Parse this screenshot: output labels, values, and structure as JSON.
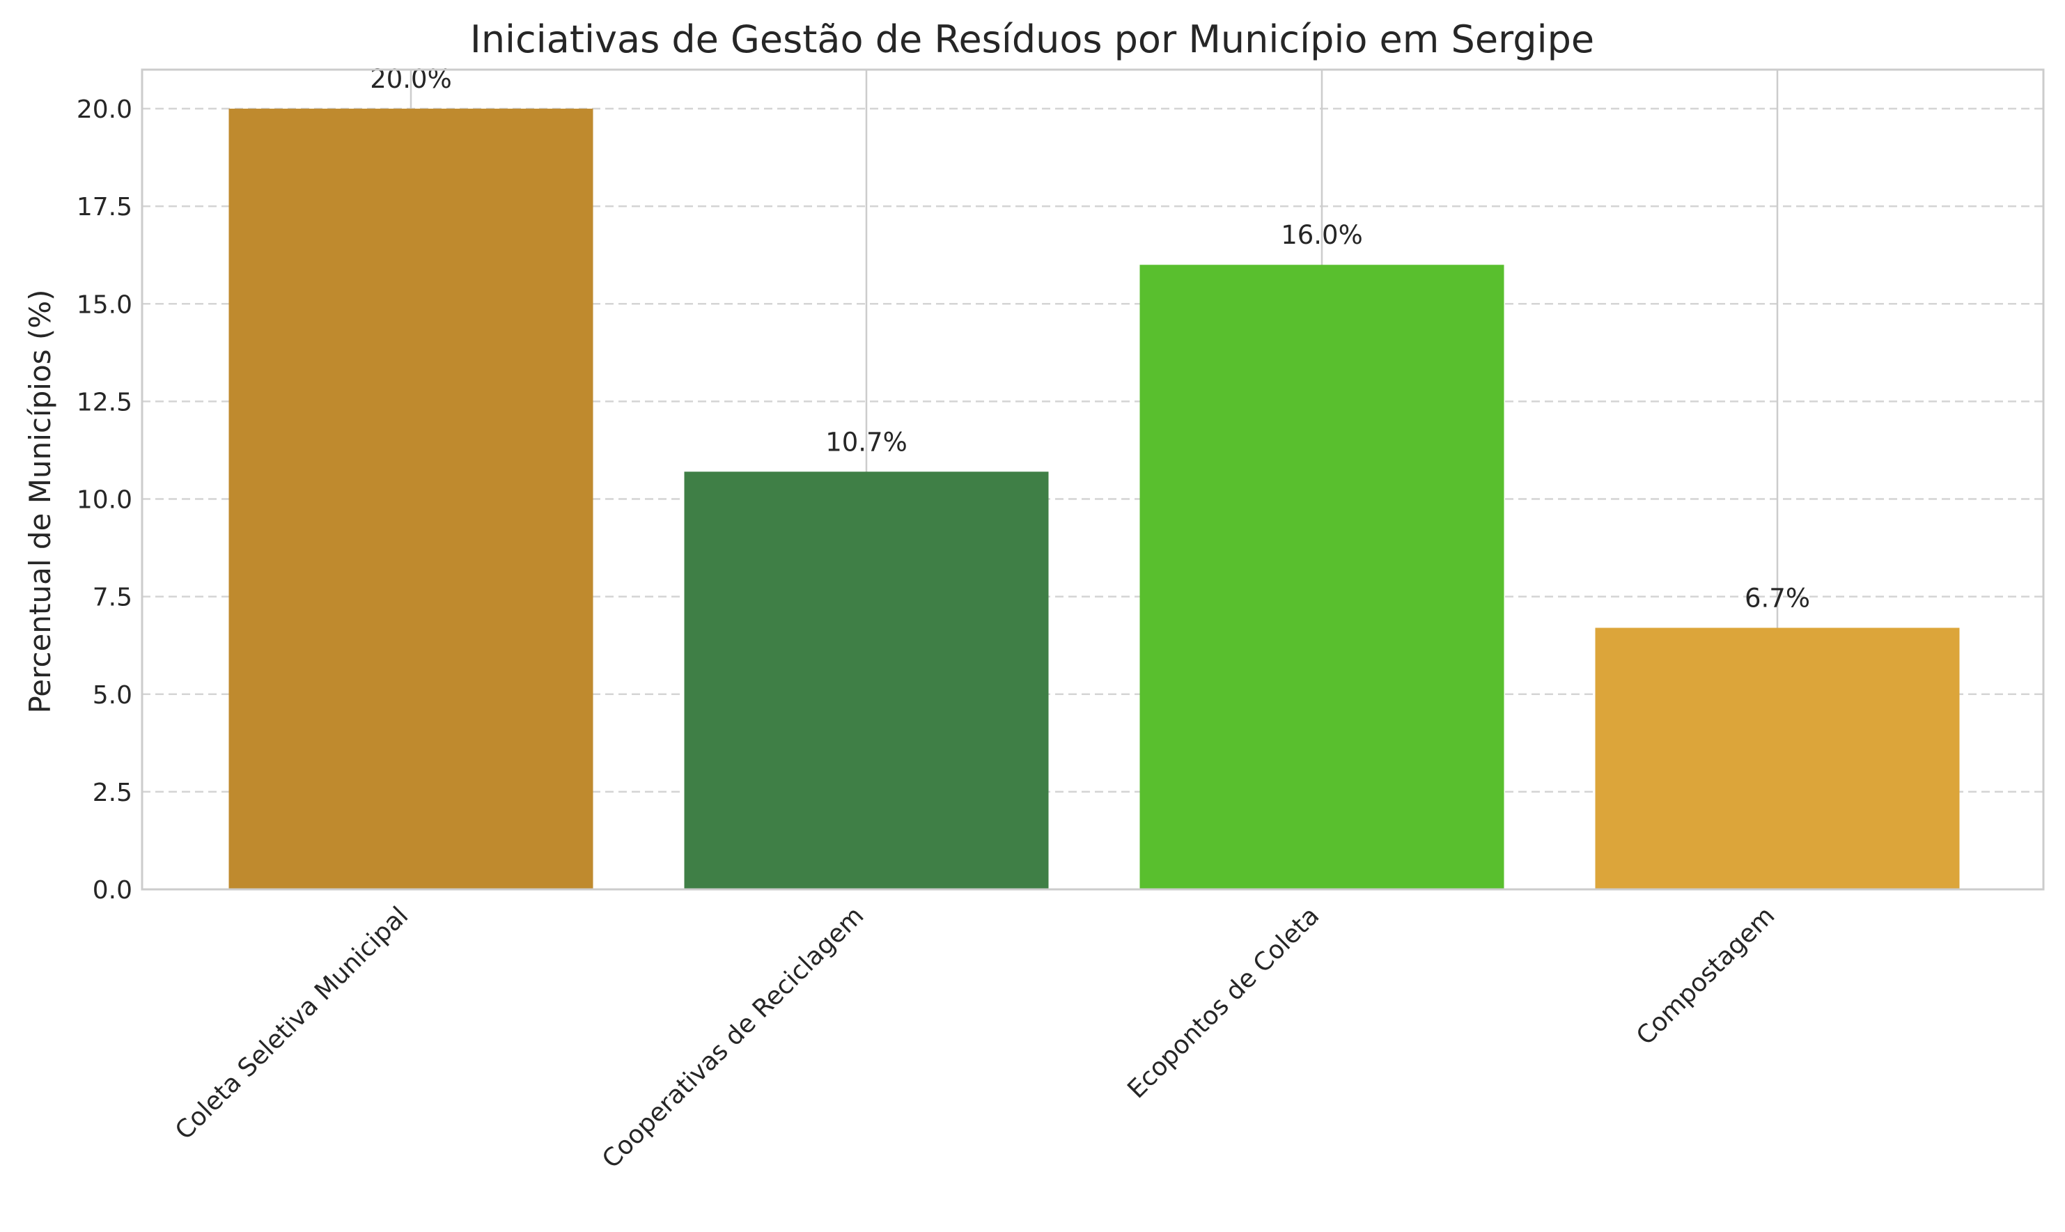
{
  "chart_data": {
    "type": "bar",
    "title": "Iniciativas de Gestão de Resíduos por Município em Sergipe",
    "xlabel": "",
    "ylabel": "Percentual de Municípios (%)",
    "categories": [
      "Coleta Seletiva Municipal",
      "Cooperativas de Reciclagem",
      "Ecopontos de Coleta",
      "Compostagem"
    ],
    "values": [
      20.0,
      10.7,
      16.0,
      6.7
    ],
    "data_labels": [
      "20.0%",
      "10.7%",
      "16.0%",
      "6.7%"
    ],
    "colors": [
      "#bf8a2e",
      "#3f7f46",
      "#59bf2e",
      "#dca53a"
    ],
    "ylim": [
      0,
      21
    ],
    "yticks": [
      0,
      2.5,
      5,
      7.5,
      10,
      12.5,
      15,
      17.5,
      20
    ],
    "ytick_labels": [
      "0.0",
      "2.5",
      "5.0",
      "7.5",
      "10.0",
      "12.5",
      "15.0",
      "17.5",
      "20.0"
    ],
    "grid": true,
    "legend": "none"
  }
}
